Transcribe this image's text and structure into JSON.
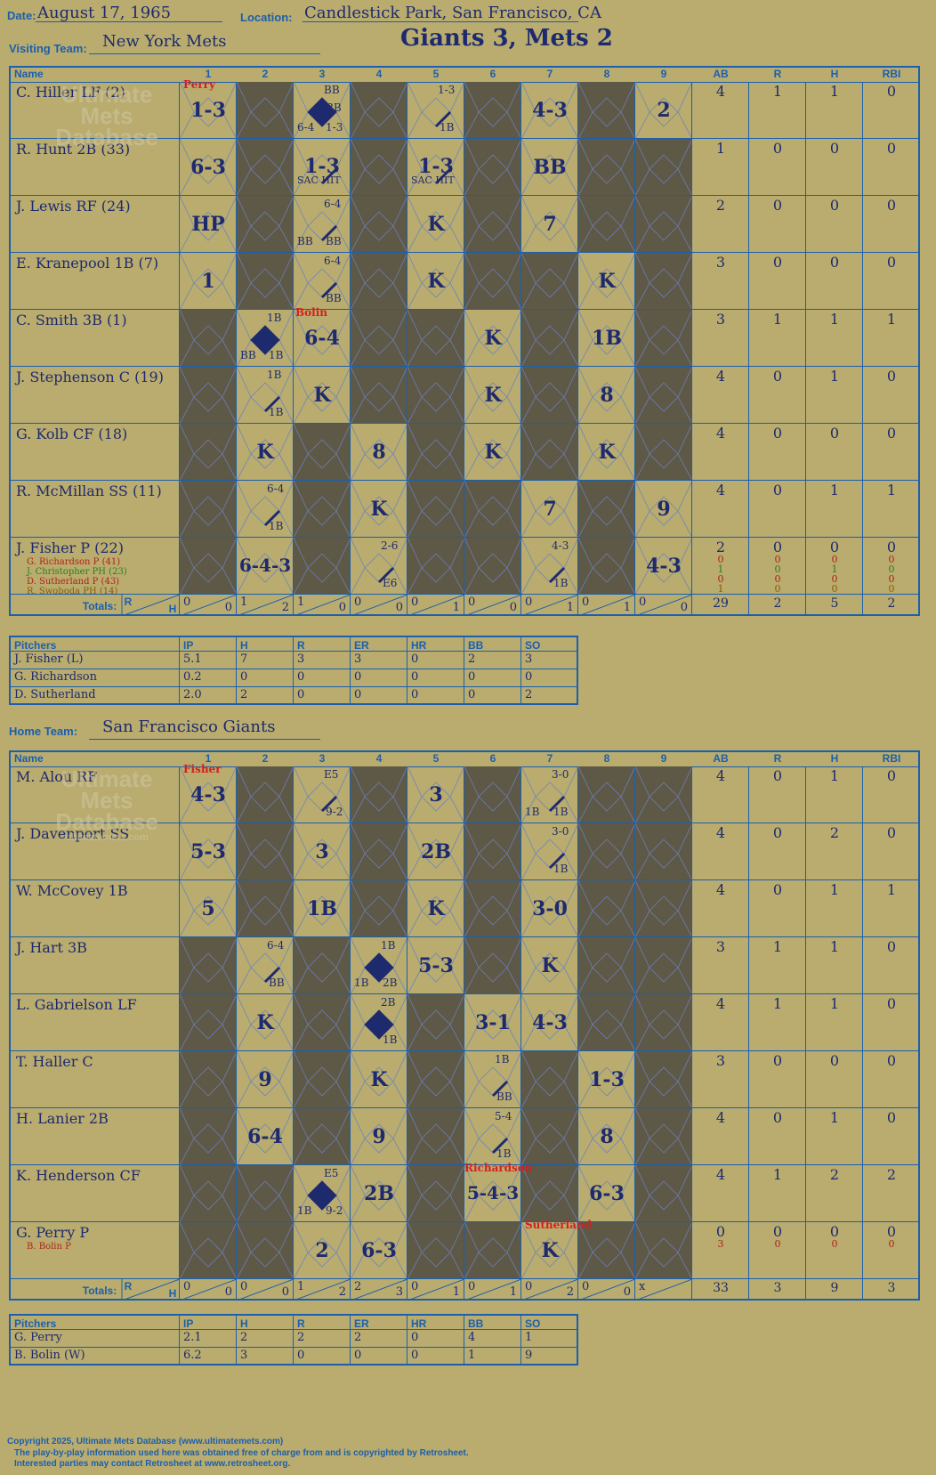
{
  "header": {
    "date_label": "Date:",
    "date": "August 17, 1965",
    "location_label": "Location:",
    "location": "Candlestick Park, San Francisco, CA",
    "visiting_label": "Visiting Team:",
    "visiting_team": "New York Mets",
    "result": "Giants 3, Mets 2",
    "home_label": "Home Team:",
    "home_team": "San Francisco Giants"
  },
  "columns": {
    "name": "Name",
    "innings": [
      "1",
      "2",
      "3",
      "4",
      "5",
      "6",
      "7",
      "8",
      "9"
    ],
    "stats": [
      "AB",
      "R",
      "H",
      "RBI"
    ],
    "totals_label": "Totals:",
    "r_label": "R",
    "h_label": "H"
  },
  "watermark": {
    "line1": "Ultimate",
    "line2": "Mets",
    "line3": "Database",
    "url": "ultimatemets.com"
  },
  "visitors": {
    "starting_pitcher_note": "Perry",
    "batters": [
      {
        "name": "C. Hiller LF (2)",
        "stats": [
          "4",
          "1",
          "1",
          "0"
        ]
      },
      {
        "name": "R. Hunt 2B (33)",
        "stats": [
          "1",
          "0",
          "0",
          "0"
        ]
      },
      {
        "name": "J. Lewis RF (24)",
        "stats": [
          "2",
          "0",
          "0",
          "0"
        ]
      },
      {
        "name": "E. Kranepool 1B (7)",
        "stats": [
          "3",
          "0",
          "0",
          "0"
        ]
      },
      {
        "name": "C. Smith 3B (1)",
        "stats": [
          "3",
          "1",
          "1",
          "1"
        ]
      },
      {
        "name": "J. Stephenson C (19)",
        "stats": [
          "4",
          "0",
          "1",
          "0"
        ]
      },
      {
        "name": "G. Kolb CF (18)",
        "stats": [
          "4",
          "0",
          "0",
          "0"
        ]
      },
      {
        "name": "R. McMillan SS (11)",
        "stats": [
          "4",
          "0",
          "1",
          "1"
        ]
      },
      {
        "name": "J. Fisher P (22)",
        "stats": [
          "2",
          "0",
          "0",
          "0"
        ]
      }
    ],
    "subs": [
      {
        "name": "G. Richardson P (41)",
        "color": "#b0221a",
        "stats": [
          "0",
          "0",
          "0",
          "0"
        ]
      },
      {
        "name": "J. Christopher PH (23)",
        "color": "#2e7d1e",
        "stats": [
          "1",
          "0",
          "1",
          "0"
        ]
      },
      {
        "name": "D. Sutherland P (43)",
        "color": "#b0221a",
        "stats": [
          "0",
          "0",
          "0",
          "0"
        ]
      },
      {
        "name": "R. Swoboda PH (14)",
        "color": "#8a5a0a",
        "stats": [
          "1",
          "0",
          "0",
          "0"
        ]
      }
    ],
    "inning_totals": [
      [
        "0",
        "0"
      ],
      [
        "1",
        "2"
      ],
      [
        "1",
        "0"
      ],
      [
        "0",
        "0"
      ],
      [
        "0",
        "1"
      ],
      [
        "0",
        "0"
      ],
      [
        "0",
        "1"
      ],
      [
        "0",
        "1"
      ],
      [
        "0",
        "0"
      ]
    ],
    "totals": [
      "29",
      "2",
      "5",
      "2"
    ],
    "pitchers_header": [
      "Pitchers",
      "IP",
      "H",
      "R",
      "ER",
      "HR",
      "BB",
      "SO"
    ],
    "pitchers": [
      [
        "J. Fisher (L)",
        "5.1",
        "7",
        "3",
        "3",
        "0",
        "2",
        "3"
      ],
      [
        "G. Richardson",
        "0.2",
        "0",
        "0",
        "0",
        "0",
        "0",
        "0"
      ],
      [
        "D. Sutherland",
        "2.0",
        "2",
        "0",
        "0",
        "0",
        "0",
        "2"
      ]
    ]
  },
  "home": {
    "starting_pitcher_note": "Fisher",
    "batters": [
      {
        "name": "M. Alou RF",
        "stats": [
          "4",
          "0",
          "1",
          "0"
        ]
      },
      {
        "name": "J. Davenport SS",
        "stats": [
          "4",
          "0",
          "2",
          "0"
        ]
      },
      {
        "name": "W. McCovey 1B",
        "stats": [
          "4",
          "0",
          "1",
          "1"
        ]
      },
      {
        "name": "J. Hart 3B",
        "stats": [
          "3",
          "1",
          "1",
          "0"
        ]
      },
      {
        "name": "L. Gabrielson LF",
        "stats": [
          "4",
          "1",
          "1",
          "0"
        ]
      },
      {
        "name": "T. Haller C",
        "stats": [
          "3",
          "0",
          "0",
          "0"
        ]
      },
      {
        "name": "H. Lanier 2B",
        "stats": [
          "4",
          "0",
          "1",
          "0"
        ]
      },
      {
        "name": "K. Henderson CF",
        "stats": [
          "4",
          "1",
          "2",
          "2"
        ]
      },
      {
        "name": "G. Perry P",
        "stats": [
          "0",
          "0",
          "0",
          "0"
        ]
      }
    ],
    "subs": [
      {
        "name": "B. Bolin P",
        "color": "#b0221a",
        "stats": [
          "3",
          "0",
          "0",
          "0"
        ]
      }
    ],
    "inning_totals": [
      [
        "0",
        "0"
      ],
      [
        "0",
        "0"
      ],
      [
        "1",
        "2"
      ],
      [
        "2",
        "3"
      ],
      [
        "0",
        "1"
      ],
      [
        "0",
        "1"
      ],
      [
        "0",
        "2"
      ],
      [
        "0",
        "0"
      ],
      [
        "x",
        ""
      ]
    ],
    "totals": [
      "33",
      "3",
      "9",
      "3"
    ],
    "pitchers_header": [
      "Pitchers",
      "IP",
      "H",
      "R",
      "ER",
      "HR",
      "BB",
      "SO"
    ],
    "pitchers": [
      [
        "G. Perry",
        "2.1",
        "2",
        "2",
        "2",
        "0",
        "4",
        "1"
      ],
      [
        "B. Bolin (W)",
        "6.2",
        "3",
        "0",
        "0",
        "0",
        "1",
        "9"
      ]
    ]
  },
  "plays": {
    "visitors": [
      [
        "1-3",
        "",
        "BB|1-3|6-4|BB|run",
        "",
        "1-3|1B",
        "",
        "4-3",
        "",
        "2"
      ],
      [
        "6-3",
        "",
        "1-3|SAC HIT",
        "",
        "1-3|SAC HIT",
        "",
        "BB",
        "",
        ""
      ],
      [
        "HP",
        "",
        "6-4|BB|BB",
        "",
        "K",
        "",
        "7",
        "",
        ""
      ],
      [
        "1",
        "",
        "6-4|BB",
        "",
        "K",
        "",
        "",
        "K",
        ""
      ],
      [
        "",
        "1B|1B|BB|run",
        "6-4",
        "",
        "",
        "K",
        "",
        "1B",
        ""
      ],
      [
        "",
        "1B|1B",
        "K",
        "",
        "",
        "K",
        "",
        "8",
        ""
      ],
      [
        "",
        "K",
        "",
        "8",
        "",
        "K",
        "",
        "K",
        ""
      ],
      [
        "",
        "6-4|1B",
        "",
        "K",
        "",
        "",
        "7",
        "",
        "9"
      ],
      [
        "",
        "6-4-3",
        "",
        "2-6|E6",
        "",
        "",
        "4-3|1B",
        "",
        "4-3"
      ]
    ],
    "home": [
      [
        "4-3",
        "",
        "E5|9-2",
        "",
        "3",
        "",
        "3-0|1B|1B",
        "",
        ""
      ],
      [
        "5-3",
        "",
        "3",
        "",
        "2B",
        "",
        "3-0|1B",
        "",
        ""
      ],
      [
        "5",
        "",
        "1B",
        "",
        "K",
        "",
        "3-0",
        "",
        ""
      ],
      [
        "",
        "6-4|BB",
        "",
        "1B|2B|1B|run",
        "5-3",
        "",
        "K",
        "",
        ""
      ],
      [
        "",
        "K",
        "",
        "2B|1B|run",
        "",
        "3-1",
        "4-3",
        "",
        ""
      ],
      [
        "",
        "9",
        "",
        "K",
        "",
        "1B|BB",
        "",
        "1-3",
        ""
      ],
      [
        "",
        "6-4",
        "",
        "9",
        "",
        "5-4|1B",
        "",
        "8",
        ""
      ],
      [
        "",
        "",
        "E5|9-2|1B|run",
        "2B",
        "",
        "5-4-3",
        "",
        "6-3",
        ""
      ],
      [
        "",
        "",
        "2",
        "6-3",
        "",
        "",
        "K",
        "",
        ""
      ]
    ],
    "pitching_change_notes": [
      {
        "text": "Bolin",
        "where": "visitors-row5-inn3"
      },
      {
        "text": "Richardson",
        "where": "home-row8-inn6"
      },
      {
        "text": "Sutherland",
        "where": "home-row9-inn7"
      }
    ]
  },
  "footer": {
    "copyright": "Copyright 2025, Ultimate Mets Database (www.ultimatemets.com)",
    "line2": "The play-by-play information used here was obtained free of charge from and is copyrighted by Retrosheet.",
    "line3": "Interested parties may contact Retrosheet at www.retrosheet.org."
  },
  "colors": {
    "background": "#b9ac6e",
    "grid": "#1b5fae",
    "ink": "#1e2a6e",
    "dark_cell": "#5d5946",
    "red": "#b0221a"
  }
}
